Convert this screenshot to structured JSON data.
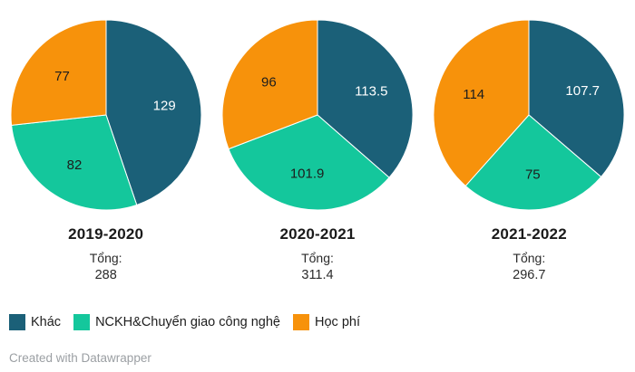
{
  "palette": {
    "khac": "#1b6078",
    "nckh": "#14c79c",
    "hoc_phi": "#f7920b",
    "slice_border": "#ffffff",
    "footer_text": "#9b9fa3"
  },
  "chart_data": [
    {
      "type": "pie",
      "title": "2019-2020",
      "categories": [
        "Khác",
        "NCKH&Chuyển giao công nghệ",
        "Học phí"
      ],
      "values": [
        129,
        82,
        77
      ],
      "total_label": "Tổng:",
      "total": 288,
      "colors": [
        "#1b6078",
        "#14c79c",
        "#f7920b"
      ],
      "value_label_colors": [
        "#ffffff",
        "#1d1d1d",
        "#1d1d1d"
      ],
      "legend_position": "bottom-left"
    },
    {
      "type": "pie",
      "title": "2020-2021",
      "categories": [
        "Khác",
        "NCKH&Chuyển giao công nghệ",
        "Học phí"
      ],
      "values": [
        113.5,
        101.9,
        96
      ],
      "total_label": "Tổng:",
      "total": 311.4,
      "colors": [
        "#1b6078",
        "#14c79c",
        "#f7920b"
      ],
      "value_label_colors": [
        "#ffffff",
        "#1d1d1d",
        "#1d1d1d"
      ],
      "legend_position": "bottom-left"
    },
    {
      "type": "pie",
      "title": "2021-2022",
      "categories": [
        "Khác",
        "NCKH&Chuyển giao công nghệ",
        "Học phí"
      ],
      "values": [
        107.7,
        75,
        114
      ],
      "total_label": "Tổng:",
      "total": 296.7,
      "colors": [
        "#1b6078",
        "#14c79c",
        "#f7920b"
      ],
      "value_label_colors": [
        "#ffffff",
        "#1d1d1d",
        "#1d1d1d"
      ],
      "legend_position": "bottom-left"
    }
  ],
  "legend": {
    "items": [
      {
        "label": "Khác",
        "color": "#1b6078"
      },
      {
        "label": "NCKH&Chuyển giao công nghệ",
        "color": "#14c79c"
      },
      {
        "label": "Học phí",
        "color": "#f7920b"
      }
    ]
  },
  "footer": {
    "text": "Created with Datawrapper"
  }
}
